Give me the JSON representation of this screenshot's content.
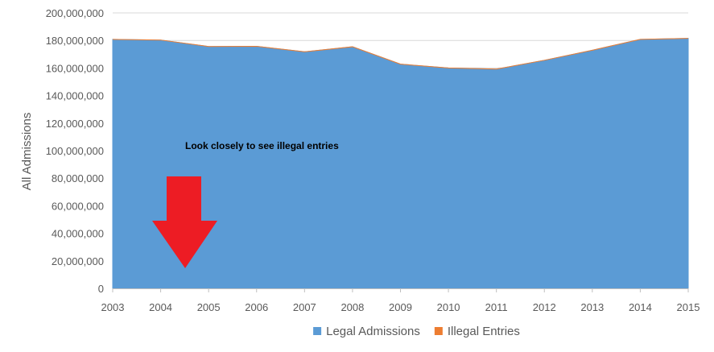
{
  "chart_data": {
    "type": "area",
    "ylabel": "All Admissions",
    "ylim": [
      0,
      200000000
    ],
    "yticks": [
      0,
      20000000,
      40000000,
      60000000,
      80000000,
      100000000,
      120000000,
      140000000,
      160000000,
      180000000,
      200000000
    ],
    "ytick_labels": [
      "0",
      "20,000,000",
      "40,000,000",
      "60,000,000",
      "80,000,000",
      "100,000,000",
      "120,000,000",
      "140,000,000",
      "160,000,000",
      "180,000,000",
      "200,000,000"
    ],
    "x": [
      "2003",
      "2004",
      "2005",
      "2006",
      "2007",
      "2008",
      "2009",
      "2010",
      "2011",
      "2012",
      "2013",
      "2014",
      "2015"
    ],
    "series": [
      {
        "name": "Legal Admissions",
        "color": "#5B9BD5",
        "values": [
          180800000,
          180300000,
          175600000,
          175700000,
          171800000,
          175400000,
          162800000,
          160000000,
          159200000,
          165600000,
          172900000,
          180800000,
          181500000
        ]
      },
      {
        "name": "Illegal Entries",
        "color": "#ED7D31",
        "values": [
          0,
          0,
          0,
          0,
          0,
          0,
          0,
          0,
          0,
          0,
          0,
          0,
          0
        ]
      }
    ],
    "annotation": {
      "text": "Look closely to see illegal entries",
      "arrow_color": "#ED1C24",
      "arrow_icon": "down-arrow-icon"
    },
    "grid": true,
    "legend_position": "bottom"
  }
}
